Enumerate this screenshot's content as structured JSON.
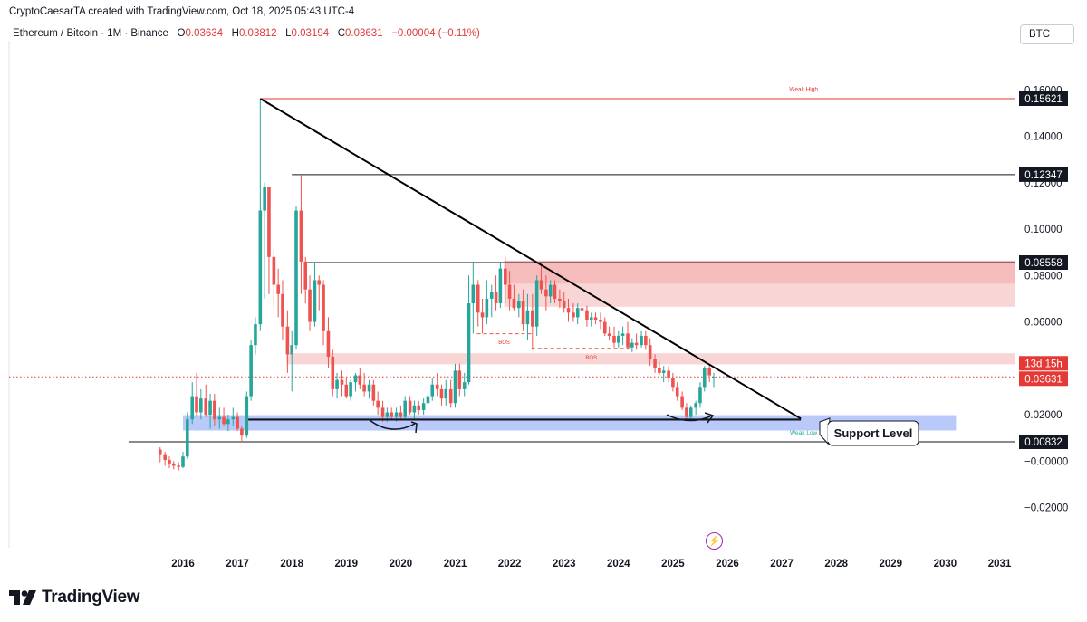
{
  "header": {
    "credit": "CryptoCaesarTA created with TradingView.com, Oct 18, 2025 05:43 UTC-4",
    "symbol": "Ethereum / Bitcoin · 1M · Binance",
    "open_label": "O",
    "open": "0.03634",
    "high_label": "H",
    "high": "0.03812",
    "low_label": "L",
    "low": "0.03194",
    "close_label": "C",
    "close": "0.03631",
    "change": "−0.00004 (−0.11%)",
    "currency": "BTC"
  },
  "brand": {
    "name": "TradingView",
    "icon": "tradingview-logo-icon"
  },
  "colors": {
    "candle_up": "#26a69a",
    "candle_down": "#ef5350",
    "resistance_zone": "#f7c5c5",
    "support_zone": "#7f9cf5",
    "weak_high": "#e53935",
    "trendline": "#000000",
    "current_price": "#e53935",
    "event_icon": "#9c27b0"
  },
  "chart_data": {
    "type": "candlestick",
    "y_axis": {
      "min": -0.03,
      "max": 0.17,
      "ticks": [
        "0.16000",
        "0.14000",
        "0.12000",
        "0.10000",
        "0.08000",
        "0.06000",
        "0.02000",
        "−0.00000",
        "−0.02000"
      ],
      "tick_values": [
        0.16,
        0.14,
        0.12,
        0.1,
        0.08,
        0.06,
        0.02,
        0.0,
        -0.02
      ],
      "price_labels": [
        {
          "text": "0.15621",
          "value": 0.15621,
          "style": "black"
        },
        {
          "text": "0.12347",
          "value": 0.12347,
          "style": "black"
        },
        {
          "text": "0.08558",
          "value": 0.08558,
          "style": "black"
        },
        {
          "text": "0.00832",
          "value": 0.00832,
          "style": "black"
        },
        {
          "text": "13d 15h",
          "value": 0.03631,
          "style": "red-countdown"
        },
        {
          "text": "0.03631",
          "value": 0.03631,
          "style": "red"
        }
      ]
    },
    "x_axis": {
      "ticks": [
        "2016",
        "2017",
        "2018",
        "2019",
        "2020",
        "2021",
        "2022",
        "2023",
        "2024",
        "2025",
        "2026",
        "2027",
        "2028",
        "2029",
        "2030",
        "2031"
      ],
      "tick_years": [
        2016,
        2017,
        2018,
        2019,
        2020,
        2021,
        2022,
        2023,
        2024,
        2025,
        2026,
        2027,
        2028,
        2029,
        2030,
        2031
      ]
    },
    "horizontal_levels": [
      {
        "value": 0.15621,
        "from": 2017.42,
        "to": 2031.3,
        "color": "red"
      },
      {
        "value": 0.12347,
        "from": 2018.0,
        "to": 2031.3,
        "color": "black"
      },
      {
        "value": 0.08558,
        "from": 2018.25,
        "to": 2031.3,
        "color": "black"
      },
      {
        "value": 0.00832,
        "from": 2015.0,
        "to": 2031.3,
        "color": "black"
      }
    ],
    "trendline": {
      "from": [
        2017.42,
        0.1562
      ],
      "to": [
        2027.35,
        0.0183
      ]
    },
    "zones": [
      {
        "type": "resistance",
        "y1": 0.0864,
        "y2": 0.0665,
        "from": 2021.9,
        "to": 2031.3
      },
      {
        "type": "resistance-dark",
        "y1": 0.0864,
        "y2": 0.0765,
        "from": 2021.9,
        "to": 2031.3
      },
      {
        "type": "resistance",
        "y1": 0.0465,
        "y2": 0.0417,
        "from": 2017.9,
        "to": 2031.3
      },
      {
        "type": "support",
        "y1": 0.0198,
        "y2": 0.0132,
        "from": 2016.0,
        "to": 2030.2
      }
    ],
    "support_trend_line": {
      "value": 0.0179,
      "from": 2017.2,
      "to": 2027.35
    },
    "annotations": [
      {
        "text": "Weak High",
        "x": 2027.4,
        "y": 0.1595,
        "color": "#e53935"
      },
      {
        "text": "Weak Low",
        "x": 2027.4,
        "y": 0.0115,
        "color": "#26a69a"
      },
      {
        "text": "BOS",
        "x": 2021.9,
        "y": 0.0505,
        "color": "#e53935"
      },
      {
        "text": "BOS",
        "x": 2023.5,
        "y": 0.0438,
        "color": "#e53935"
      },
      {
        "text": "Support Level",
        "x": 2028.6,
        "y": 0.0118,
        "color": "#131722"
      }
    ],
    "bos_lines": [
      {
        "value": 0.0549,
        "from": 2021.4,
        "to": 2022.4
      },
      {
        "value": 0.0486,
        "from": 2022.4,
        "to": 2024.25
      }
    ],
    "candles": [
      {
        "t": 2015.58,
        "o": 0.005,
        "h": 0.006,
        "l": -0.0005,
        "c": 0.003
      },
      {
        "t": 2015.67,
        "o": 0.003,
        "h": 0.004,
        "l": -0.002,
        "c": 0.0005
      },
      {
        "t": 2015.75,
        "o": 0.0005,
        "h": 0.002,
        "l": -0.003,
        "c": -0.001
      },
      {
        "t": 2015.83,
        "o": -0.001,
        "h": 0.0,
        "l": -0.0035,
        "c": -0.002
      },
      {
        "t": 2015.92,
        "o": -0.002,
        "h": -0.0005,
        "l": -0.004,
        "c": -0.0025
      },
      {
        "t": 2016.0,
        "o": -0.0025,
        "h": 0.004,
        "l": -0.003,
        "c": 0.002
      },
      {
        "t": 2016.08,
        "o": 0.002,
        "h": 0.021,
        "l": 0.001,
        "c": 0.018
      },
      {
        "t": 2016.17,
        "o": 0.018,
        "h": 0.034,
        "l": 0.016,
        "c": 0.028
      },
      {
        "t": 2016.25,
        "o": 0.028,
        "h": 0.038,
        "l": 0.019,
        "c": 0.021
      },
      {
        "t": 2016.33,
        "o": 0.021,
        "h": 0.031,
        "l": 0.018,
        "c": 0.027
      },
      {
        "t": 2016.42,
        "o": 0.027,
        "h": 0.033,
        "l": 0.019,
        "c": 0.02
      },
      {
        "t": 2016.5,
        "o": 0.02,
        "h": 0.029,
        "l": 0.014,
        "c": 0.026
      },
      {
        "t": 2016.58,
        "o": 0.026,
        "h": 0.029,
        "l": 0.015,
        "c": 0.018
      },
      {
        "t": 2016.67,
        "o": 0.018,
        "h": 0.023,
        "l": 0.014,
        "c": 0.019
      },
      {
        "t": 2016.75,
        "o": 0.019,
        "h": 0.023,
        "l": 0.015,
        "c": 0.016
      },
      {
        "t": 2016.83,
        "o": 0.016,
        "h": 0.02,
        "l": 0.013,
        "c": 0.018
      },
      {
        "t": 2016.92,
        "o": 0.018,
        "h": 0.023,
        "l": 0.015,
        "c": 0.019
      },
      {
        "t": 2017.0,
        "o": 0.019,
        "h": 0.021,
        "l": 0.013,
        "c": 0.014
      },
      {
        "t": 2017.08,
        "o": 0.014,
        "h": 0.015,
        "l": 0.008,
        "c": 0.011
      },
      {
        "t": 2017.17,
        "o": 0.011,
        "h": 0.03,
        "l": 0.01,
        "c": 0.028
      },
      {
        "t": 2017.25,
        "o": 0.028,
        "h": 0.052,
        "l": 0.026,
        "c": 0.05
      },
      {
        "t": 2017.33,
        "o": 0.05,
        "h": 0.062,
        "l": 0.046,
        "c": 0.059
      },
      {
        "t": 2017.42,
        "o": 0.059,
        "h": 0.1562,
        "l": 0.056,
        "c": 0.108
      },
      {
        "t": 2017.5,
        "o": 0.108,
        "h": 0.12,
        "l": 0.07,
        "c": 0.118
      },
      {
        "t": 2017.58,
        "o": 0.118,
        "h": 0.118,
        "l": 0.072,
        "c": 0.088
      },
      {
        "t": 2017.67,
        "o": 0.088,
        "h": 0.091,
        "l": 0.065,
        "c": 0.076
      },
      {
        "t": 2017.75,
        "o": 0.076,
        "h": 0.083,
        "l": 0.062,
        "c": 0.072
      },
      {
        "t": 2017.83,
        "o": 0.072,
        "h": 0.078,
        "l": 0.052,
        "c": 0.058
      },
      {
        "t": 2017.92,
        "o": 0.058,
        "h": 0.065,
        "l": 0.038,
        "c": 0.046
      },
      {
        "t": 2018.0,
        "o": 0.046,
        "h": 0.056,
        "l": 0.03,
        "c": 0.05
      },
      {
        "t": 2018.08,
        "o": 0.05,
        "h": 0.11,
        "l": 0.048,
        "c": 0.108
      },
      {
        "t": 2018.17,
        "o": 0.108,
        "h": 0.1235,
        "l": 0.072,
        "c": 0.086
      },
      {
        "t": 2018.25,
        "o": 0.086,
        "h": 0.088,
        "l": 0.068,
        "c": 0.074
      },
      {
        "t": 2018.33,
        "o": 0.074,
        "h": 0.08,
        "l": 0.056,
        "c": 0.06
      },
      {
        "t": 2018.42,
        "o": 0.06,
        "h": 0.0856,
        "l": 0.058,
        "c": 0.078
      },
      {
        "t": 2018.5,
        "o": 0.078,
        "h": 0.08,
        "l": 0.065,
        "c": 0.076
      },
      {
        "t": 2018.58,
        "o": 0.076,
        "h": 0.078,
        "l": 0.05,
        "c": 0.056
      },
      {
        "t": 2018.67,
        "o": 0.056,
        "h": 0.062,
        "l": 0.04,
        "c": 0.045
      },
      {
        "t": 2018.75,
        "o": 0.045,
        "h": 0.048,
        "l": 0.028,
        "c": 0.031
      },
      {
        "t": 2018.83,
        "o": 0.031,
        "h": 0.038,
        "l": 0.027,
        "c": 0.035
      },
      {
        "t": 2018.92,
        "o": 0.035,
        "h": 0.039,
        "l": 0.028,
        "c": 0.033
      },
      {
        "t": 2019.0,
        "o": 0.033,
        "h": 0.036,
        "l": 0.027,
        "c": 0.028
      },
      {
        "t": 2019.08,
        "o": 0.028,
        "h": 0.035,
        "l": 0.026,
        "c": 0.034
      },
      {
        "t": 2019.17,
        "o": 0.034,
        "h": 0.038,
        "l": 0.03,
        "c": 0.037
      },
      {
        "t": 2019.25,
        "o": 0.037,
        "h": 0.04,
        "l": 0.031,
        "c": 0.033
      },
      {
        "t": 2019.33,
        "o": 0.033,
        "h": 0.038,
        "l": 0.028,
        "c": 0.03
      },
      {
        "t": 2019.42,
        "o": 0.03,
        "h": 0.035,
        "l": 0.027,
        "c": 0.033
      },
      {
        "t": 2019.5,
        "o": 0.033,
        "h": 0.035,
        "l": 0.024,
        "c": 0.026
      },
      {
        "t": 2019.58,
        "o": 0.026,
        "h": 0.03,
        "l": 0.02,
        "c": 0.023
      },
      {
        "t": 2019.67,
        "o": 0.023,
        "h": 0.026,
        "l": 0.017,
        "c": 0.019
      },
      {
        "t": 2019.75,
        "o": 0.019,
        "h": 0.023,
        "l": 0.017,
        "c": 0.021
      },
      {
        "t": 2019.83,
        "o": 0.021,
        "h": 0.023,
        "l": 0.018,
        "c": 0.019
      },
      {
        "t": 2019.92,
        "o": 0.019,
        "h": 0.023,
        "l": 0.017,
        "c": 0.021
      },
      {
        "t": 2020.0,
        "o": 0.021,
        "h": 0.024,
        "l": 0.018,
        "c": 0.019
      },
      {
        "t": 2020.08,
        "o": 0.019,
        "h": 0.028,
        "l": 0.018,
        "c": 0.026
      },
      {
        "t": 2020.17,
        "o": 0.026,
        "h": 0.028,
        "l": 0.02,
        "c": 0.021
      },
      {
        "t": 2020.25,
        "o": 0.021,
        "h": 0.026,
        "l": 0.018,
        "c": 0.024
      },
      {
        "t": 2020.33,
        "o": 0.024,
        "h": 0.026,
        "l": 0.02,
        "c": 0.022
      },
      {
        "t": 2020.42,
        "o": 0.022,
        "h": 0.027,
        "l": 0.02,
        "c": 0.025
      },
      {
        "t": 2020.5,
        "o": 0.025,
        "h": 0.03,
        "l": 0.023,
        "c": 0.028
      },
      {
        "t": 2020.58,
        "o": 0.028,
        "h": 0.036,
        "l": 0.026,
        "c": 0.033
      },
      {
        "t": 2020.67,
        "o": 0.033,
        "h": 0.038,
        "l": 0.028,
        "c": 0.031
      },
      {
        "t": 2020.75,
        "o": 0.031,
        "h": 0.033,
        "l": 0.024,
        "c": 0.027
      },
      {
        "t": 2020.83,
        "o": 0.027,
        "h": 0.035,
        "l": 0.024,
        "c": 0.031
      },
      {
        "t": 2020.92,
        "o": 0.031,
        "h": 0.035,
        "l": 0.023,
        "c": 0.025
      },
      {
        "t": 2021.0,
        "o": 0.025,
        "h": 0.042,
        "l": 0.023,
        "c": 0.039
      },
      {
        "t": 2021.08,
        "o": 0.039,
        "h": 0.042,
        "l": 0.028,
        "c": 0.031
      },
      {
        "t": 2021.17,
        "o": 0.031,
        "h": 0.038,
        "l": 0.028,
        "c": 0.034
      },
      {
        "t": 2021.25,
        "o": 0.034,
        "h": 0.08,
        "l": 0.033,
        "c": 0.068
      },
      {
        "t": 2021.33,
        "o": 0.068,
        "h": 0.086,
        "l": 0.055,
        "c": 0.076
      },
      {
        "t": 2021.42,
        "o": 0.076,
        "h": 0.078,
        "l": 0.058,
        "c": 0.064
      },
      {
        "t": 2021.5,
        "o": 0.064,
        "h": 0.07,
        "l": 0.055,
        "c": 0.062
      },
      {
        "t": 2021.58,
        "o": 0.062,
        "h": 0.078,
        "l": 0.059,
        "c": 0.07
      },
      {
        "t": 2021.67,
        "o": 0.07,
        "h": 0.076,
        "l": 0.062,
        "c": 0.073
      },
      {
        "t": 2021.75,
        "o": 0.073,
        "h": 0.08,
        "l": 0.065,
        "c": 0.068
      },
      {
        "t": 2021.83,
        "o": 0.068,
        "h": 0.086,
        "l": 0.066,
        "c": 0.083
      },
      {
        "t": 2021.92,
        "o": 0.083,
        "h": 0.088,
        "l": 0.068,
        "c": 0.076
      },
      {
        "t": 2022.0,
        "o": 0.076,
        "h": 0.082,
        "l": 0.065,
        "c": 0.07
      },
      {
        "t": 2022.08,
        "o": 0.07,
        "h": 0.076,
        "l": 0.065,
        "c": 0.066
      },
      {
        "t": 2022.17,
        "o": 0.066,
        "h": 0.072,
        "l": 0.062,
        "c": 0.069
      },
      {
        "t": 2022.25,
        "o": 0.069,
        "h": 0.074,
        "l": 0.056,
        "c": 0.059
      },
      {
        "t": 2022.33,
        "o": 0.059,
        "h": 0.072,
        "l": 0.052,
        "c": 0.065
      },
      {
        "t": 2022.42,
        "o": 0.065,
        "h": 0.072,
        "l": 0.048,
        "c": 0.058
      },
      {
        "t": 2022.5,
        "o": 0.058,
        "h": 0.08,
        "l": 0.054,
        "c": 0.078
      },
      {
        "t": 2022.58,
        "o": 0.078,
        "h": 0.086,
        "l": 0.072,
        "c": 0.074
      },
      {
        "t": 2022.67,
        "o": 0.074,
        "h": 0.08,
        "l": 0.065,
        "c": 0.071
      },
      {
        "t": 2022.75,
        "o": 0.071,
        "h": 0.078,
        "l": 0.068,
        "c": 0.076
      },
      {
        "t": 2022.83,
        "o": 0.076,
        "h": 0.078,
        "l": 0.068,
        "c": 0.07
      },
      {
        "t": 2022.92,
        "o": 0.07,
        "h": 0.074,
        "l": 0.066,
        "c": 0.069
      },
      {
        "t": 2023.0,
        "o": 0.069,
        "h": 0.073,
        "l": 0.064,
        "c": 0.066
      },
      {
        "t": 2023.08,
        "o": 0.066,
        "h": 0.07,
        "l": 0.06,
        "c": 0.064
      },
      {
        "t": 2023.17,
        "o": 0.064,
        "h": 0.068,
        "l": 0.06,
        "c": 0.062
      },
      {
        "t": 2023.25,
        "o": 0.062,
        "h": 0.068,
        "l": 0.059,
        "c": 0.066
      },
      {
        "t": 2023.33,
        "o": 0.066,
        "h": 0.069,
        "l": 0.062,
        "c": 0.065
      },
      {
        "t": 2023.42,
        "o": 0.065,
        "h": 0.067,
        "l": 0.058,
        "c": 0.061
      },
      {
        "t": 2023.5,
        "o": 0.061,
        "h": 0.064,
        "l": 0.058,
        "c": 0.062
      },
      {
        "t": 2023.58,
        "o": 0.062,
        "h": 0.064,
        "l": 0.059,
        "c": 0.061
      },
      {
        "t": 2023.67,
        "o": 0.061,
        "h": 0.064,
        "l": 0.057,
        "c": 0.06
      },
      {
        "t": 2023.75,
        "o": 0.06,
        "h": 0.062,
        "l": 0.054,
        "c": 0.055
      },
      {
        "t": 2023.83,
        "o": 0.055,
        "h": 0.058,
        "l": 0.052,
        "c": 0.054
      },
      {
        "t": 2023.92,
        "o": 0.054,
        "h": 0.058,
        "l": 0.049,
        "c": 0.051
      },
      {
        "t": 2024.0,
        "o": 0.051,
        "h": 0.056,
        "l": 0.049,
        "c": 0.054
      },
      {
        "t": 2024.08,
        "o": 0.054,
        "h": 0.058,
        "l": 0.05,
        "c": 0.055
      },
      {
        "t": 2024.17,
        "o": 0.055,
        "h": 0.06,
        "l": 0.048,
        "c": 0.049
      },
      {
        "t": 2024.25,
        "o": 0.049,
        "h": 0.053,
        "l": 0.047,
        "c": 0.051
      },
      {
        "t": 2024.33,
        "o": 0.051,
        "h": 0.055,
        "l": 0.048,
        "c": 0.05
      },
      {
        "t": 2024.42,
        "o": 0.05,
        "h": 0.056,
        "l": 0.049,
        "c": 0.054
      },
      {
        "t": 2024.5,
        "o": 0.054,
        "h": 0.056,
        "l": 0.048,
        "c": 0.05
      },
      {
        "t": 2024.58,
        "o": 0.05,
        "h": 0.053,
        "l": 0.041,
        "c": 0.044
      },
      {
        "t": 2024.67,
        "o": 0.044,
        "h": 0.046,
        "l": 0.038,
        "c": 0.04
      },
      {
        "t": 2024.75,
        "o": 0.04,
        "h": 0.043,
        "l": 0.037,
        "c": 0.038
      },
      {
        "t": 2024.83,
        "o": 0.038,
        "h": 0.041,
        "l": 0.034,
        "c": 0.039
      },
      {
        "t": 2024.92,
        "o": 0.039,
        "h": 0.041,
        "l": 0.034,
        "c": 0.036
      },
      {
        "t": 2025.0,
        "o": 0.036,
        "h": 0.038,
        "l": 0.03,
        "c": 0.032
      },
      {
        "t": 2025.08,
        "o": 0.032,
        "h": 0.034,
        "l": 0.026,
        "c": 0.028
      },
      {
        "t": 2025.17,
        "o": 0.028,
        "h": 0.03,
        "l": 0.022,
        "c": 0.023
      },
      {
        "t": 2025.25,
        "o": 0.023,
        "h": 0.025,
        "l": 0.018,
        "c": 0.019
      },
      {
        "t": 2025.33,
        "o": 0.019,
        "h": 0.024,
        "l": 0.018,
        "c": 0.023
      },
      {
        "t": 2025.42,
        "o": 0.023,
        "h": 0.026,
        "l": 0.02,
        "c": 0.025
      },
      {
        "t": 2025.5,
        "o": 0.025,
        "h": 0.034,
        "l": 0.023,
        "c": 0.032
      },
      {
        "t": 2025.58,
        "o": 0.032,
        "h": 0.041,
        "l": 0.03,
        "c": 0.04
      },
      {
        "t": 2025.67,
        "o": 0.04,
        "h": 0.0415,
        "l": 0.034,
        "c": 0.037
      },
      {
        "t": 2025.75,
        "o": 0.0363,
        "h": 0.0381,
        "l": 0.0319,
        "c": 0.0363
      }
    ]
  }
}
